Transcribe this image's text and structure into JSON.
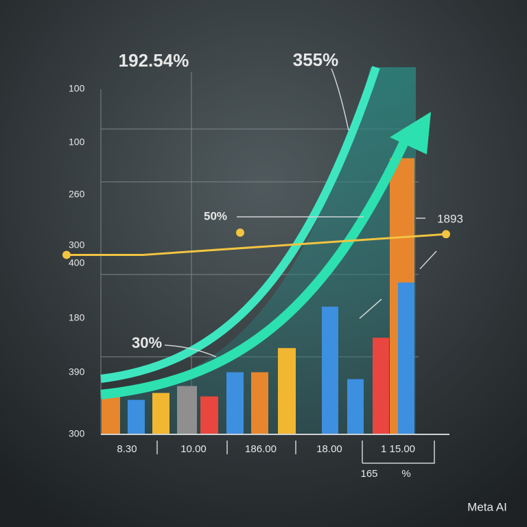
{
  "chart_data": {
    "type": "bar",
    "annotations": [
      "192.54%",
      "355%",
      "50%",
      "1893",
      "30%",
      "165",
      "%"
    ],
    "watermark": "Meta AI",
    "y_labels": [
      "100",
      "100",
      "260",
      "300",
      "400",
      "180",
      "390",
      "300"
    ],
    "x_labels": [
      "8.30",
      "10.00",
      "186.00",
      "18.00",
      "1 15.00"
    ],
    "categories": [
      null,
      null,
      null,
      null,
      null,
      null,
      null,
      null,
      null,
      null,
      null,
      null,
      null
    ],
    "values": [
      11,
      10,
      12,
      14,
      11,
      18,
      18,
      25,
      37,
      16,
      28,
      80,
      44
    ],
    "colors": [
      "#e8862e",
      "#3d8fe0",
      "#f2b731",
      "#8f8f8f",
      "#e8463f",
      "#3d8fe0",
      "#e8862e",
      "#f2b731",
      "#3d8fe0",
      "#3d8fe0",
      "#e8463f",
      "#e8862e",
      "#3d8fe0"
    ],
    "line": {
      "values": [
        52,
        52,
        58
      ],
      "color": "#f2c440"
    },
    "ylim": [
      0,
      100
    ]
  }
}
